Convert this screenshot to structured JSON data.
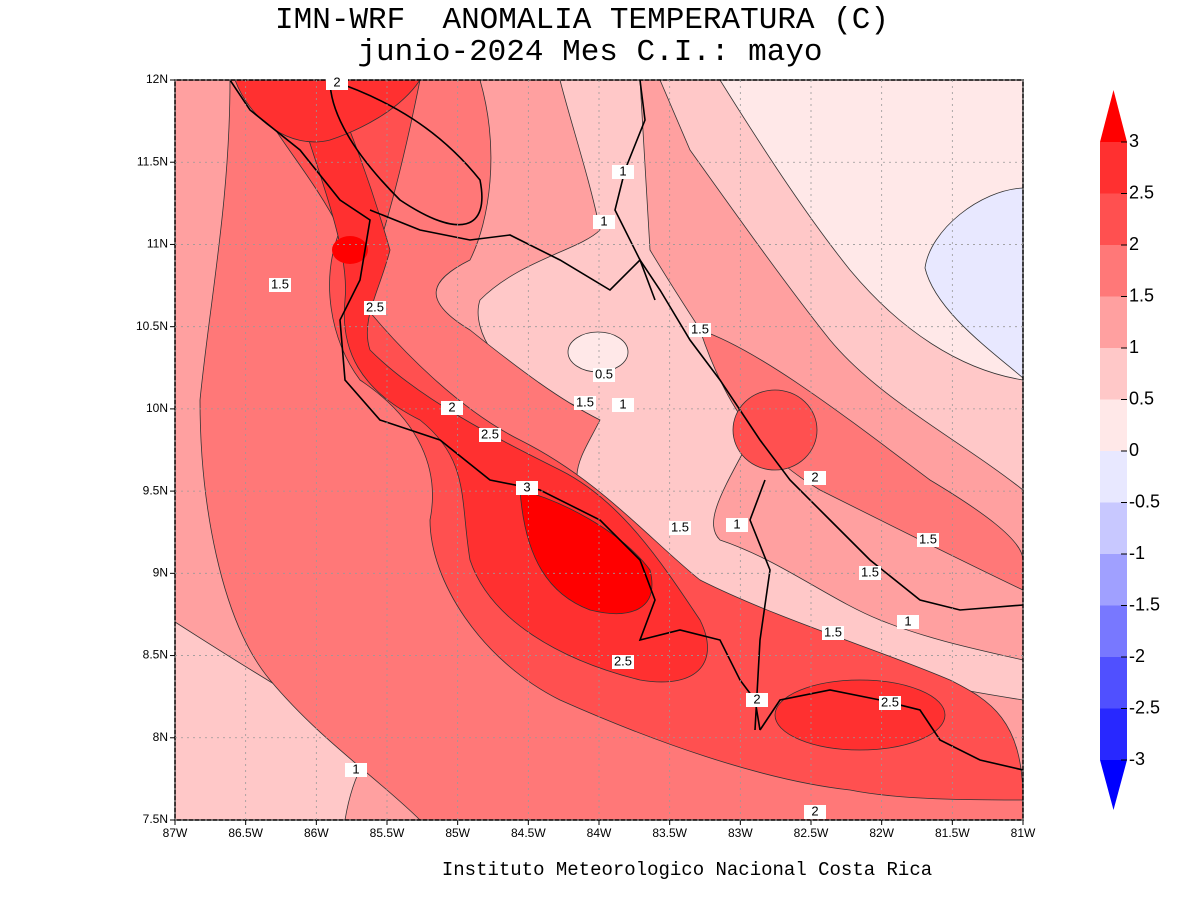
{
  "chart_data": {
    "type": "contour-map",
    "title": "IMN-WRF  ANOMALIA TEMPERATURA (C)",
    "subtitle": "junio-2024 Mes C.I.: mayo",
    "footer": "Instituto Meteorologico Nacional Costa Rica",
    "xlim": [
      -87,
      -81
    ],
    "ylim": [
      7.5,
      12
    ],
    "xticks": [
      {
        "value": -87,
        "label": "87W"
      },
      {
        "value": -86.5,
        "label": "86.5W"
      },
      {
        "value": -86,
        "label": "86W"
      },
      {
        "value": -85.5,
        "label": "85.5W"
      },
      {
        "value": -85,
        "label": "85W"
      },
      {
        "value": -84.5,
        "label": "84.5W"
      },
      {
        "value": -84,
        "label": "84W"
      },
      {
        "value": -83.5,
        "label": "83.5W"
      },
      {
        "value": -83,
        "label": "83W"
      },
      {
        "value": -82.5,
        "label": "82.5W"
      },
      {
        "value": -82,
        "label": "82W"
      },
      {
        "value": -81.5,
        "label": "81.5W"
      },
      {
        "value": -81,
        "label": "81W"
      }
    ],
    "yticks": [
      {
        "value": 7.5,
        "label": "7.5N"
      },
      {
        "value": 8,
        "label": "8N"
      },
      {
        "value": 8.5,
        "label": "8.5N"
      },
      {
        "value": 9,
        "label": "9N"
      },
      {
        "value": 9.5,
        "label": "9.5N"
      },
      {
        "value": 10,
        "label": "10N"
      },
      {
        "value": 10.5,
        "label": "10.5N"
      },
      {
        "value": 11,
        "label": "11N"
      },
      {
        "value": 11.5,
        "label": "11.5N"
      },
      {
        "value": 12,
        "label": "12N"
      }
    ],
    "grid": true,
    "colorbar": {
      "levels": [
        -3,
        -2.5,
        -2,
        -1.5,
        -1,
        -0.5,
        0,
        0.5,
        1,
        1.5,
        2,
        2.5,
        3
      ],
      "colors": [
        "#0000ff",
        "#2828ff",
        "#5050ff",
        "#7878ff",
        "#a0a0ff",
        "#c8c8ff",
        "#e8e8ff",
        "#ffe8e8",
        "#ffc8c8",
        "#ffa0a0",
        "#ff7878",
        "#ff5050",
        "#ff3030",
        "#ff0000"
      ]
    },
    "contour_labels": [
      2,
      1.5,
      2.5,
      2,
      2.5,
      3,
      1.5,
      0.5,
      1,
      1,
      1,
      1.5,
      2,
      1.5,
      1,
      1.5,
      1.5,
      1,
      1.5,
      2.5,
      2,
      2.5,
      1,
      2
    ]
  }
}
